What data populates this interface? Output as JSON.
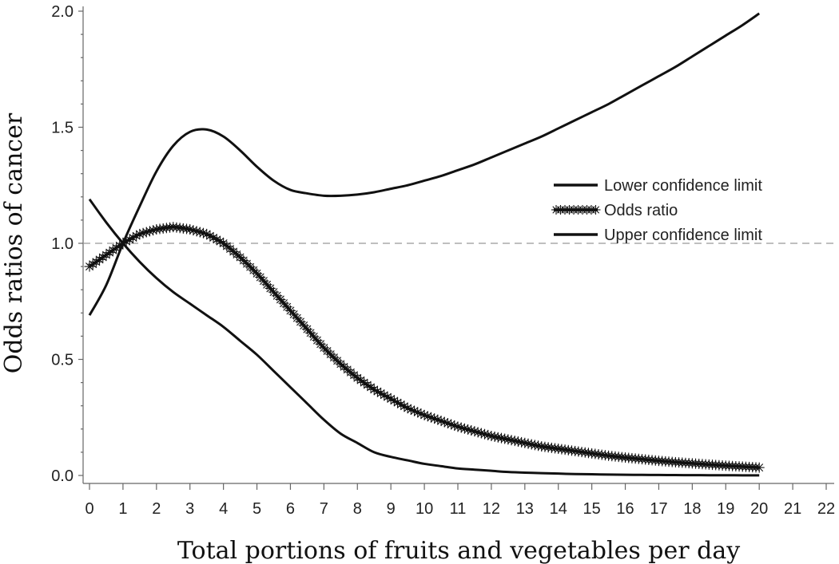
{
  "chart_data": {
    "type": "line",
    "xlabel": "Total portions of fruits and vegetables per day",
    "ylabel": "Odds ratios of cancer",
    "xlim": [
      0,
      22
    ],
    "ylim": [
      0,
      2.0
    ],
    "x_ticks": [
      0,
      1,
      2,
      3,
      4,
      5,
      6,
      7,
      8,
      9,
      10,
      11,
      12,
      13,
      14,
      15,
      16,
      17,
      18,
      19,
      20,
      21,
      22
    ],
    "y_ticks": [
      0.0,
      0.5,
      1.0,
      1.5,
      2.0
    ],
    "y_tick_labels": [
      "0.0",
      "0.5",
      "1.0",
      "1.5",
      "2.0"
    ],
    "grid": false,
    "reference_line": {
      "y": 1.0,
      "style": "dashed"
    },
    "legend": {
      "placement": "right",
      "entries": [
        "Lower confidence limit",
        "Odds ratio",
        "Upper confidence limit"
      ]
    },
    "x": [
      0,
      0.5,
      1,
      1.5,
      2,
      2.5,
      3,
      3.5,
      4,
      4.5,
      5,
      5.5,
      6,
      6.5,
      7,
      7.5,
      8,
      8.5,
      9,
      9.5,
      10,
      10.5,
      11,
      11.5,
      12,
      12.5,
      13,
      13.5,
      14,
      14.5,
      15,
      15.5,
      16,
      16.5,
      17,
      17.5,
      18,
      18.5,
      19,
      19.5,
      20
    ],
    "series": [
      {
        "name": "Lower confidence limit",
        "marker": "none",
        "values": [
          1.19,
          1.09,
          1.0,
          0.92,
          0.85,
          0.79,
          0.74,
          0.69,
          0.64,
          0.58,
          0.52,
          0.45,
          0.38,
          0.31,
          0.24,
          0.18,
          0.14,
          0.1,
          0.08,
          0.065,
          0.05,
          0.04,
          0.03,
          0.025,
          0.02,
          0.015,
          0.012,
          0.01,
          0.008,
          0.006,
          0.005,
          0.004,
          0.003,
          0.0025,
          0.002,
          0.0015,
          0.0012,
          0.001,
          0.0008,
          0.0006,
          0.0005
        ]
      },
      {
        "name": "Odds ratio",
        "marker": "star",
        "values": [
          0.9,
          0.95,
          1.0,
          1.04,
          1.06,
          1.07,
          1.06,
          1.04,
          1.0,
          0.94,
          0.87,
          0.79,
          0.71,
          0.63,
          0.55,
          0.48,
          0.42,
          0.37,
          0.33,
          0.29,
          0.26,
          0.235,
          0.21,
          0.19,
          0.17,
          0.155,
          0.14,
          0.125,
          0.115,
          0.105,
          0.095,
          0.085,
          0.077,
          0.07,
          0.063,
          0.057,
          0.052,
          0.047,
          0.042,
          0.038,
          0.034
        ]
      },
      {
        "name": "Upper confidence limit",
        "marker": "none",
        "values": [
          0.69,
          0.82,
          1.0,
          1.16,
          1.31,
          1.42,
          1.48,
          1.49,
          1.46,
          1.4,
          1.33,
          1.27,
          1.23,
          1.215,
          1.205,
          1.205,
          1.21,
          1.22,
          1.235,
          1.25,
          1.27,
          1.29,
          1.315,
          1.34,
          1.37,
          1.4,
          1.43,
          1.46,
          1.495,
          1.53,
          1.565,
          1.6,
          1.64,
          1.68,
          1.72,
          1.76,
          1.805,
          1.85,
          1.895,
          1.94,
          1.99
        ]
      }
    ]
  }
}
